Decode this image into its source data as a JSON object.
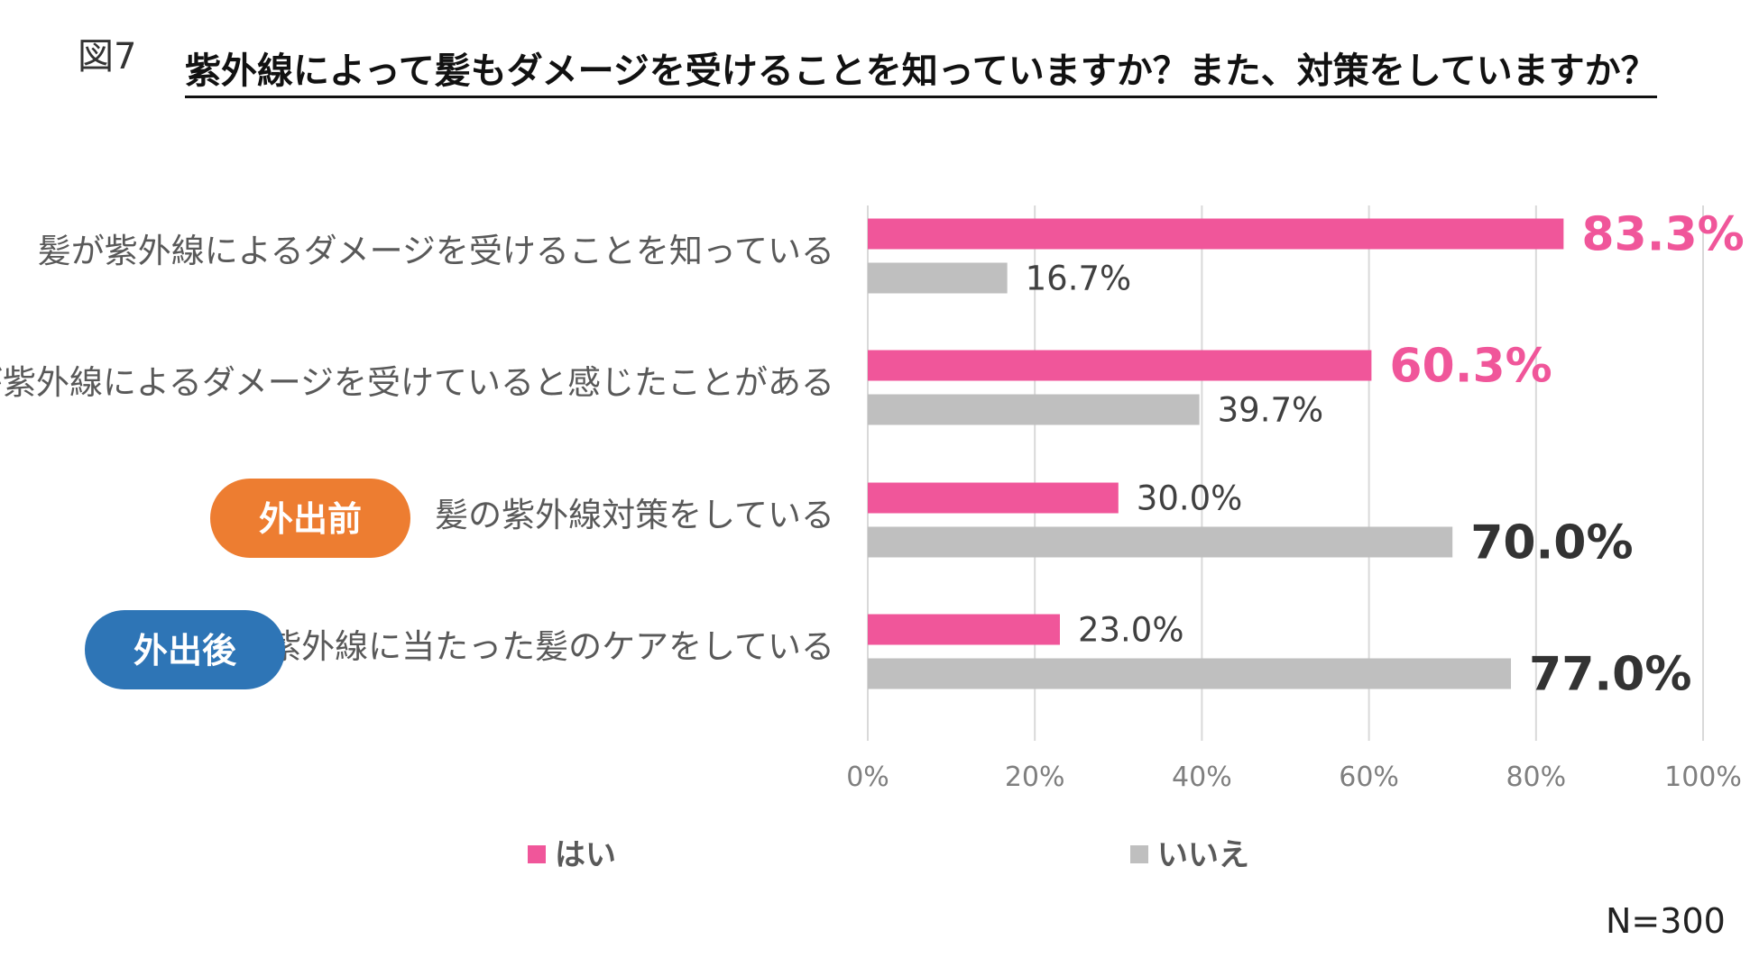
{
  "figure_label": "図7",
  "chart_data": {
    "type": "bar",
    "orientation": "horizontal",
    "title": "紫外線によって髪もダメージを受けることを知っていますか？また、対策をしていますか？",
    "categories": [
      {
        "label": "髪が紫外線によるダメージを受けることを知っている",
        "tag": null
      },
      {
        "label": "髪が紫外線によるダメージを受けていると感じたことがある",
        "tag": null
      },
      {
        "label": "髪の紫外線対策をしている",
        "tag": "外出前"
      },
      {
        "label": "紫外線に当たった髪のケアをしている",
        "tag": "外出後"
      }
    ],
    "series": [
      {
        "name": "はい",
        "values": [
          83.3,
          60.3,
          30.0,
          23.0
        ],
        "labels": [
          "83.3%",
          "60.3%",
          "30.0%",
          "23.0%"
        ]
      },
      {
        "name": "いいえ",
        "values": [
          16.7,
          39.7,
          70.0,
          77.0
        ],
        "labels": [
          "16.7%",
          "39.7%",
          "70.0%",
          "77.0%"
        ]
      }
    ],
    "xlim": [
      0,
      100
    ],
    "ticks": [
      0,
      20,
      40,
      60,
      80,
      100
    ],
    "tick_labels": [
      "0%",
      "20%",
      "40%",
      "60%",
      "80%",
      "100%"
    ],
    "grid": true,
    "legend_position": "bottom",
    "note": "N=300"
  },
  "colors": {
    "yes": "#f0569a",
    "no": "#bfbfbf",
    "tag_before": "#ed7d31",
    "tag_after": "#2e75b6",
    "grid": "#d9d9d9"
  }
}
